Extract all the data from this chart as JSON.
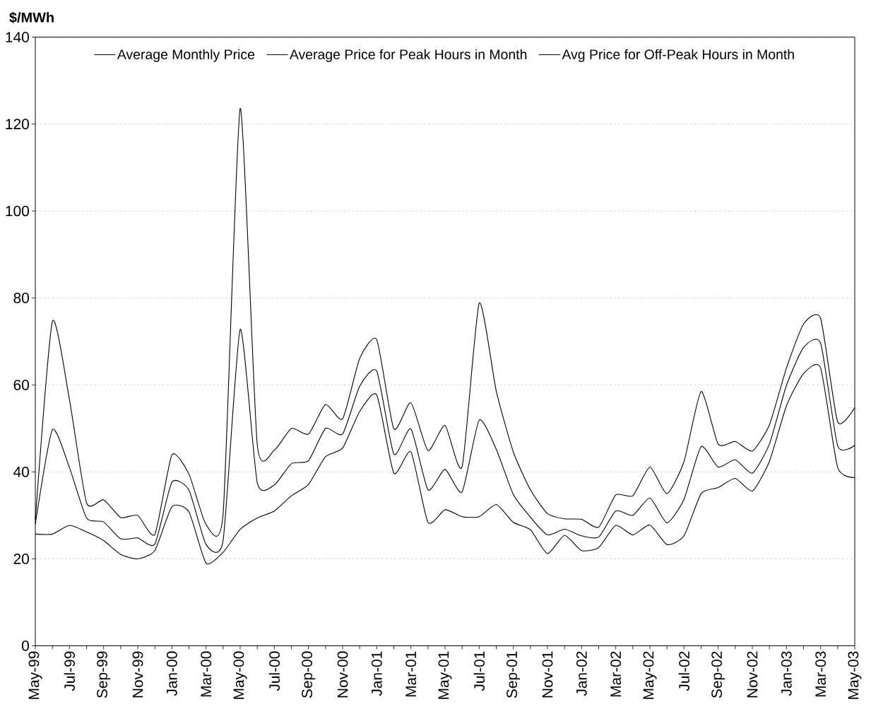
{
  "chart_data": {
    "type": "line",
    "ylabel": "$/MWh",
    "categories": [
      "May-99",
      null,
      "Jul-99",
      null,
      "Sep-99",
      null,
      "Nov-99",
      null,
      "Jan-00",
      null,
      "Mar-00",
      null,
      "May-00",
      null,
      "Jul-00",
      null,
      "Sep-00",
      null,
      "Nov-00",
      null,
      "Jan-01",
      null,
      "Mar-01",
      null,
      "May-01",
      null,
      "Jul-01",
      null,
      "Sep-01",
      null,
      "Nov-01",
      null,
      "Jan-02",
      null,
      "Mar-02",
      null,
      "May-02",
      null,
      "Jul-02",
      null,
      "Sep-02",
      null,
      "Nov-02",
      null,
      "Jan-03",
      null,
      "Mar-03",
      null,
      "May-03"
    ],
    "series": [
      {
        "name": "Average Monthly Price",
        "color": "#000000",
        "values": [
          28,
          49.7,
          41,
          29.4,
          28.5,
          24.6,
          24.8,
          23.4,
          37.6,
          35.8,
          23.3,
          24.2,
          72.8,
          37.5,
          37,
          41.9,
          42.6,
          50,
          48.7,
          59.7,
          63.2,
          44.1,
          49.9,
          35.9,
          40.6,
          35.4,
          51.9,
          45.2,
          34.8,
          29.6,
          25.5,
          26.8,
          25.3,
          25,
          31,
          30,
          34,
          28.3,
          33.7,
          45.8,
          41.1,
          42.8,
          39.7,
          46.4,
          59.9,
          68.6,
          69.6,
          46,
          46.1
        ]
      },
      {
        "name": "Average Price for Peak Hours in Month",
        "color": "#000000",
        "values": [
          29,
          74.6,
          56.6,
          32.9,
          33.6,
          29.5,
          30,
          25.6,
          43.9,
          39.5,
          27.9,
          30.3,
          123.6,
          46.3,
          45,
          50,
          48.7,
          55.5,
          52.2,
          66.1,
          70.4,
          49.9,
          55.9,
          44.9,
          50.7,
          41.2,
          78.8,
          58.6,
          44.6,
          35.9,
          30.4,
          29.2,
          29.1,
          27.3,
          34.7,
          34.5,
          41.1,
          35,
          42.4,
          58.5,
          46.4,
          47,
          44.8,
          50.8,
          63.9,
          74,
          75.3,
          51.5,
          54.8
        ]
      },
      {
        "name": "Avg Price for Off-Peak Hours in Month",
        "color": "#000000",
        "values": [
          25.7,
          25.7,
          27.7,
          26.2,
          24.2,
          21,
          20,
          21.9,
          32,
          30.8,
          19,
          21.5,
          26.8,
          29.4,
          31,
          34.5,
          37.1,
          43.5,
          45.5,
          53.9,
          57.7,
          39.7,
          44.6,
          28.4,
          31.3,
          29.7,
          29.7,
          32.5,
          28.4,
          26.7,
          21.2,
          25.4,
          21.9,
          22.6,
          27.7,
          25.5,
          27.8,
          23.3,
          25.3,
          35,
          36.4,
          38.5,
          35.6,
          42.4,
          55.2,
          62.6,
          63.9,
          41,
          38.7
        ]
      }
    ],
    "ylim": [
      0,
      140
    ],
    "yticks": [
      0,
      20,
      40,
      60,
      80,
      100,
      120,
      140
    ],
    "grid": "y",
    "legend": "top"
  }
}
